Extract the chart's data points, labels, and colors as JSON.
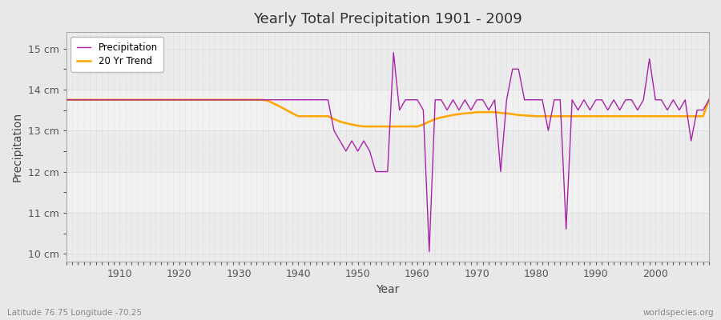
{
  "title": "Yearly Total Precipitation 1901 - 2009",
  "xlabel": "Year",
  "ylabel": "Precipitation",
  "subtitle": "Latitude 76.75 Longitude -70.25",
  "watermark": "worldspecies.org",
  "ylim": [
    9.8,
    15.4
  ],
  "yticks": [
    10,
    11,
    12,
    13,
    14,
    15
  ],
  "ytick_labels": [
    "10 cm",
    "11 cm",
    "12 cm",
    "13 cm",
    "14 cm",
    "15 cm"
  ],
  "xlim": [
    1901,
    2009
  ],
  "xticks": [
    1910,
    1920,
    1930,
    1940,
    1950,
    1960,
    1970,
    1980,
    1990,
    2000
  ],
  "precip_color": "#AA22AA",
  "trend_color": "#FFA500",
  "fig_bg": "#E8E8E8",
  "ax_bg": "#ECECEC",
  "band_color": "#DCDCDC",
  "grid_color": "#C8C8C8",
  "years": [
    1901,
    1902,
    1903,
    1904,
    1905,
    1906,
    1907,
    1908,
    1909,
    1910,
    1911,
    1912,
    1913,
    1914,
    1915,
    1916,
    1917,
    1918,
    1919,
    1920,
    1921,
    1922,
    1923,
    1924,
    1925,
    1926,
    1927,
    1928,
    1929,
    1930,
    1931,
    1932,
    1933,
    1934,
    1935,
    1936,
    1937,
    1938,
    1939,
    1940,
    1941,
    1942,
    1943,
    1944,
    1945,
    1946,
    1947,
    1948,
    1949,
    1950,
    1951,
    1952,
    1953,
    1954,
    1955,
    1956,
    1957,
    1958,
    1959,
    1960,
    1961,
    1962,
    1963,
    1964,
    1965,
    1966,
    1967,
    1968,
    1969,
    1970,
    1971,
    1972,
    1973,
    1974,
    1975,
    1976,
    1977,
    1978,
    1979,
    1980,
    1981,
    1982,
    1983,
    1984,
    1985,
    1986,
    1987,
    1988,
    1989,
    1990,
    1991,
    1992,
    1993,
    1994,
    1995,
    1996,
    1997,
    1998,
    1999,
    2000,
    2001,
    2002,
    2003,
    2004,
    2005,
    2006,
    2007,
    2008,
    2009
  ],
  "precipitation": [
    13.75,
    13.75,
    13.75,
    13.75,
    13.75,
    13.75,
    13.75,
    13.75,
    13.75,
    13.75,
    13.75,
    13.75,
    13.75,
    13.75,
    13.75,
    13.75,
    13.75,
    13.75,
    13.75,
    13.75,
    13.75,
    13.75,
    13.75,
    13.75,
    13.75,
    13.75,
    13.75,
    13.75,
    13.75,
    13.75,
    13.75,
    13.75,
    13.75,
    13.75,
    13.75,
    13.75,
    13.75,
    13.75,
    13.75,
    13.75,
    13.75,
    13.75,
    13.75,
    13.75,
    13.75,
    13.0,
    12.75,
    12.5,
    12.75,
    12.5,
    12.75,
    12.5,
    12.0,
    12.0,
    12.0,
    14.9,
    13.5,
    13.75,
    13.75,
    13.75,
    13.5,
    10.05,
    13.75,
    13.75,
    13.5,
    13.75,
    13.5,
    13.75,
    13.5,
    13.75,
    13.75,
    13.5,
    13.75,
    12.0,
    13.75,
    14.5,
    14.5,
    13.75,
    13.75,
    13.75,
    13.75,
    13.0,
    13.75,
    13.75,
    10.6,
    13.75,
    13.5,
    13.75,
    13.5,
    13.75,
    13.75,
    13.5,
    13.75,
    13.5,
    13.75,
    13.75,
    13.5,
    13.75,
    14.75,
    13.75,
    13.75,
    13.5,
    13.75,
    13.5,
    13.75,
    12.75,
    13.5,
    13.5,
    13.75
  ],
  "trend": [
    13.75,
    13.75,
    13.75,
    13.75,
    13.75,
    13.75,
    13.75,
    13.75,
    13.75,
    13.75,
    13.75,
    13.75,
    13.75,
    13.75,
    13.75,
    13.75,
    13.75,
    13.75,
    13.75,
    13.75,
    13.75,
    13.75,
    13.75,
    13.75,
    13.75,
    13.75,
    13.75,
    13.75,
    13.75,
    13.75,
    13.75,
    13.75,
    13.75,
    13.75,
    13.72,
    13.65,
    13.58,
    13.5,
    13.42,
    13.35,
    13.35,
    13.35,
    13.35,
    13.35,
    13.35,
    13.28,
    13.22,
    13.18,
    13.15,
    13.12,
    13.1,
    13.1,
    13.1,
    13.1,
    13.1,
    13.1,
    13.1,
    13.1,
    13.1,
    13.1,
    13.15,
    13.22,
    13.28,
    13.32,
    13.35,
    13.38,
    13.4,
    13.42,
    13.43,
    13.45,
    13.45,
    13.45,
    13.45,
    13.43,
    13.42,
    13.4,
    13.38,
    13.37,
    13.36,
    13.35,
    13.35,
    13.35,
    13.35,
    13.35,
    13.35,
    13.35,
    13.35,
    13.35,
    13.35,
    13.35,
    13.35,
    13.35,
    13.35,
    13.35,
    13.35,
    13.35,
    13.35,
    13.35,
    13.35,
    13.35,
    13.35,
    13.35,
    13.35,
    13.35,
    13.35,
    13.35,
    13.35,
    13.35,
    13.75
  ]
}
